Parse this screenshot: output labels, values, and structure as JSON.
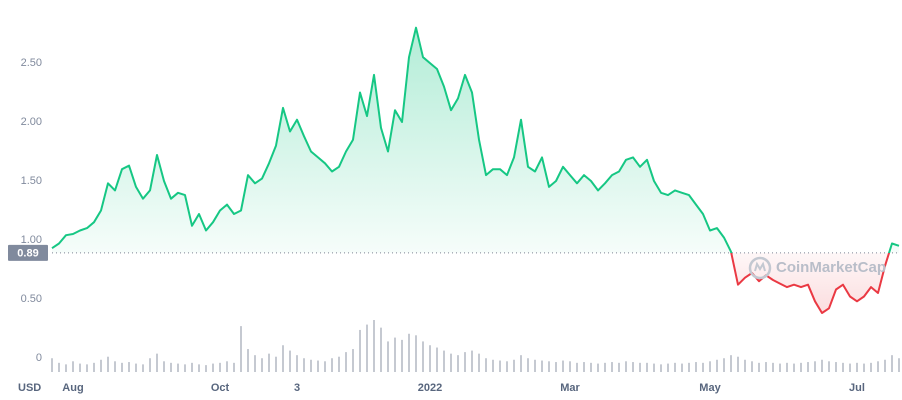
{
  "chart_data": {
    "type": "line",
    "currency_label": "USD",
    "watermark": "CoinMarketCap",
    "baseline": 0.89,
    "color_up": "#16c784",
    "color_down": "#ea3943",
    "volume_color": "#c5c9d1",
    "grid": false,
    "ylim": [
      -0.12,
      2.95
    ],
    "yticks": [
      0,
      {
        "value": 0.5,
        "label": "0.50"
      },
      {
        "value": 1,
        "label": "1.00"
      },
      {
        "value": 1.5,
        "label": "1.50"
      },
      {
        "value": 2,
        "label": "2.00"
      },
      {
        "value": 2.5,
        "label": "2.50"
      }
    ],
    "categories": [
      null,
      null,
      null,
      "Aug",
      null,
      null,
      null,
      null,
      null,
      null,
      null,
      null,
      null,
      null,
      null,
      null,
      null,
      null,
      null,
      null,
      null,
      null,
      null,
      null,
      "Oct",
      null,
      null,
      null,
      null,
      null,
      null,
      null,
      null,
      null,
      null,
      "3",
      null,
      null,
      null,
      null,
      null,
      null,
      null,
      null,
      null,
      null,
      null,
      null,
      null,
      null,
      null,
      null,
      null,
      null,
      "2022",
      null,
      null,
      null,
      null,
      null,
      null,
      null,
      null,
      null,
      null,
      null,
      null,
      null,
      null,
      null,
      null,
      null,
      null,
      null,
      "Mar",
      null,
      null,
      null,
      null,
      null,
      null,
      null,
      null,
      null,
      null,
      null,
      null,
      null,
      null,
      null,
      null,
      null,
      null,
      null,
      "May",
      null,
      null,
      null,
      null,
      null,
      null,
      null,
      null,
      null,
      null,
      null,
      null,
      null,
      null,
      null,
      null,
      null,
      null,
      null,
      null,
      "Jul",
      null,
      null,
      null,
      null,
      null,
      null
    ],
    "values": [
      0.93,
      0.97,
      1.04,
      1.05,
      1.08,
      1.1,
      1.15,
      1.25,
      1.48,
      1.42,
      1.6,
      1.63,
      1.45,
      1.35,
      1.42,
      1.72,
      1.5,
      1.35,
      1.4,
      1.38,
      1.12,
      1.22,
      1.08,
      1.15,
      1.25,
      1.3,
      1.22,
      1.25,
      1.55,
      1.48,
      1.52,
      1.65,
      1.8,
      2.12,
      1.92,
      2.02,
      1.88,
      1.75,
      1.7,
      1.65,
      1.58,
      1.62,
      1.75,
      1.85,
      2.25,
      2.05,
      2.4,
      1.95,
      1.75,
      2.1,
      2.0,
      2.55,
      2.8,
      2.55,
      2.5,
      2.45,
      2.3,
      2.1,
      2.2,
      2.4,
      2.25,
      1.85,
      1.55,
      1.6,
      1.6,
      1.55,
      1.7,
      2.02,
      1.62,
      1.58,
      1.7,
      1.45,
      1.5,
      1.62,
      1.55,
      1.48,
      1.55,
      1.5,
      1.42,
      1.48,
      1.55,
      1.58,
      1.68,
      1.7,
      1.62,
      1.68,
      1.5,
      1.4,
      1.38,
      1.42,
      1.4,
      1.38,
      1.3,
      1.22,
      1.08,
      1.1,
      1.02,
      0.9,
      0.62,
      0.68,
      0.72,
      0.65,
      0.7,
      0.66,
      0.63,
      0.6,
      0.62,
      0.6,
      0.62,
      0.48,
      0.38,
      0.42,
      0.58,
      0.62,
      0.52,
      0.48,
      0.52,
      0.6,
      0.55,
      0.78,
      0.97,
      0.95
    ],
    "volume": [
      18,
      12,
      10,
      14,
      11,
      10,
      12,
      16,
      20,
      14,
      12,
      13,
      11,
      10,
      18,
      24,
      14,
      12,
      11,
      10,
      12,
      10,
      9,
      11,
      12,
      14,
      12,
      60,
      30,
      22,
      18,
      24,
      20,
      35,
      28,
      22,
      18,
      16,
      15,
      14,
      18,
      20,
      26,
      30,
      55,
      62,
      68,
      58,
      40,
      45,
      42,
      50,
      48,
      40,
      35,
      32,
      28,
      24,
      22,
      26,
      28,
      24,
      18,
      16,
      15,
      14,
      16,
      22,
      18,
      16,
      15,
      14,
      13,
      15,
      14,
      12,
      13,
      12,
      11,
      12,
      13,
      12,
      14,
      13,
      12,
      12,
      11,
      10,
      11,
      12,
      11,
      12,
      13,
      12,
      14,
      16,
      18,
      22,
      20,
      16,
      14,
      12,
      13,
      12,
      11,
      12,
      11,
      12,
      13,
      14,
      16,
      14,
      13,
      12,
      11,
      12,
      11,
      12,
      14,
      16,
      22,
      18
    ]
  }
}
